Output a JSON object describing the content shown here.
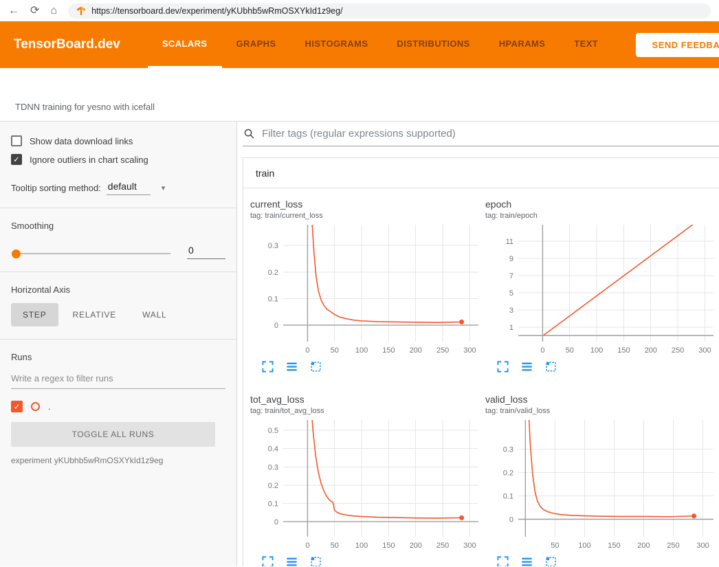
{
  "browser": {
    "url": "https://tensorboard.dev/experiment/yKUbhb5wRmOSXYkId1z9eg/"
  },
  "icons": {
    "back": "←",
    "reload": "⟳",
    "home": "⌂",
    "chevron": "▾",
    "check": "✓"
  },
  "header": {
    "logo": "TensorBoard.dev",
    "tabs": [
      {
        "label": "SCALARS"
      },
      {
        "label": "GRAPHS"
      },
      {
        "label": "HISTOGRAMS"
      },
      {
        "label": "DISTRIBUTIONS"
      },
      {
        "label": "HPARAMS"
      },
      {
        "label": "TEXT"
      }
    ],
    "feedback_button": "SEND FEEDBACK"
  },
  "experiment": {
    "title": "TDNN training for yesno with icefall",
    "id_text": "experiment yKUbhb5wRmOSXYkId1z9eg"
  },
  "sidebar": {
    "show_download_label": "Show data download links",
    "ignore_outliers_label": "Ignore outliers in chart scaling",
    "tooltip_label": "Tooltip sorting method:",
    "tooltip_value": "default",
    "smoothing_label": "Smoothing",
    "smoothing_value": "0",
    "haxis_label": "Horizontal Axis",
    "haxis_step": "STEP",
    "haxis_relative": "RELATIVE",
    "haxis_wall": "WALL",
    "runs_label": "Runs",
    "runs_filter_placeholder": "Write a regex to filter runs",
    "run_name": ".",
    "toggle_all_label": "TOGGLE ALL RUNS"
  },
  "main": {
    "filter_placeholder": "Filter tags (regular expressions supported)",
    "section_label": "train"
  },
  "colors": {
    "header_orange": "#f77b00",
    "run_color": "#f4572a",
    "icon_blue": "#2196f3"
  },
  "chart_data": [
    {
      "type": "line",
      "title": "current_loss",
      "tag": "tag: train/current_loss",
      "xlabel": "step",
      "ylabel": "",
      "x_ticks": [
        0,
        50,
        100,
        150,
        200,
        250,
        300
      ],
      "y_ticks": [
        0,
        0.1,
        0.2,
        0.3
      ],
      "xlim": [
        -45,
        316
      ],
      "ylim": [
        -0.062,
        0.378
      ],
      "grid": true,
      "end_dot": true,
      "series": [
        {
          "name": ".",
          "color": "#f4572a",
          "points": [
            [
              0,
              0.9
            ],
            [
              4,
              0.6
            ],
            [
              8,
              0.4
            ],
            [
              12,
              0.27
            ],
            [
              16,
              0.18
            ],
            [
              20,
              0.13
            ],
            [
              25,
              0.095
            ],
            [
              30,
              0.075
            ],
            [
              36,
              0.06
            ],
            [
              43,
              0.05
            ],
            [
              50,
              0.04
            ],
            [
              60,
              0.03
            ],
            [
              72,
              0.024
            ],
            [
              85,
              0.019
            ],
            [
              100,
              0.016
            ],
            [
              130,
              0.013
            ],
            [
              160,
              0.012
            ],
            [
              200,
              0.011
            ],
            [
              240,
              0.01
            ],
            [
              285,
              0.012
            ]
          ]
        }
      ]
    },
    {
      "type": "line",
      "title": "epoch",
      "tag": "tag: train/epoch",
      "xlabel": "step",
      "ylabel": "",
      "x_ticks": [
        0,
        50,
        100,
        150,
        200,
        250,
        300
      ],
      "y_ticks": [
        1,
        3,
        5,
        7,
        9,
        11
      ],
      "xlim": [
        -45,
        316
      ],
      "ylim": [
        -0.7,
        12.9
      ],
      "grid": true,
      "end_dot": false,
      "series": [
        {
          "name": ".",
          "color": "#f4572a",
          "points": [
            [
              2,
              0.05
            ],
            [
              288,
              13.4
            ]
          ]
        }
      ]
    },
    {
      "type": "line",
      "title": "tot_avg_loss",
      "tag": "tag: train/tot_avg_loss",
      "xlabel": "step",
      "ylabel": "",
      "x_ticks": [
        0,
        50,
        100,
        150,
        200,
        250,
        300
      ],
      "y_ticks": [
        0,
        0.1,
        0.2,
        0.3,
        0.4,
        0.5
      ],
      "xlim": [
        -45,
        316
      ],
      "ylim": [
        -0.083,
        0.557
      ],
      "grid": true,
      "end_dot": true,
      "series": [
        {
          "name": ".",
          "color": "#f4572a",
          "points": [
            [
              0,
              1.0
            ],
            [
              5,
              0.72
            ],
            [
              10,
              0.5
            ],
            [
              15,
              0.36
            ],
            [
              20,
              0.27
            ],
            [
              25,
              0.21
            ],
            [
              30,
              0.17
            ],
            [
              35,
              0.14
            ],
            [
              40,
              0.12
            ],
            [
              44,
              0.11
            ],
            [
              47,
              0.105
            ],
            [
              50,
              0.062
            ],
            [
              55,
              0.05
            ],
            [
              62,
              0.042
            ],
            [
              72,
              0.036
            ],
            [
              85,
              0.031
            ],
            [
              100,
              0.028
            ],
            [
              130,
              0.024
            ],
            [
              160,
              0.022
            ],
            [
              200,
              0.02
            ],
            [
              240,
              0.019
            ],
            [
              285,
              0.021
            ]
          ]
        }
      ]
    },
    {
      "type": "line",
      "title": "valid_loss",
      "tag": "tag: train/valid_loss",
      "xlabel": "step",
      "ylabel": "",
      "x_ticks": [
        50,
        100,
        150,
        200,
        250,
        300
      ],
      "y_ticks": [
        0,
        0.1,
        0.2,
        0.3
      ],
      "xlim": [
        -12,
        318
      ],
      "ylim": [
        -0.075,
        0.425
      ],
      "grid": true,
      "end_dot": true,
      "series": [
        {
          "name": ".",
          "color": "#f4572a",
          "points": [
            [
              0,
              0.9
            ],
            [
              4,
              0.55
            ],
            [
              8,
              0.33
            ],
            [
              12,
              0.2
            ],
            [
              16,
              0.12
            ],
            [
              20,
              0.08
            ],
            [
              25,
              0.055
            ],
            [
              30,
              0.042
            ],
            [
              38,
              0.032
            ],
            [
              48,
              0.025
            ],
            [
              60,
              0.02
            ],
            [
              75,
              0.017
            ],
            [
              95,
              0.015
            ],
            [
              125,
              0.013
            ],
            [
              160,
              0.012
            ],
            [
              200,
              0.012
            ],
            [
              245,
              0.011
            ],
            [
              285,
              0.014
            ]
          ]
        }
      ]
    }
  ]
}
